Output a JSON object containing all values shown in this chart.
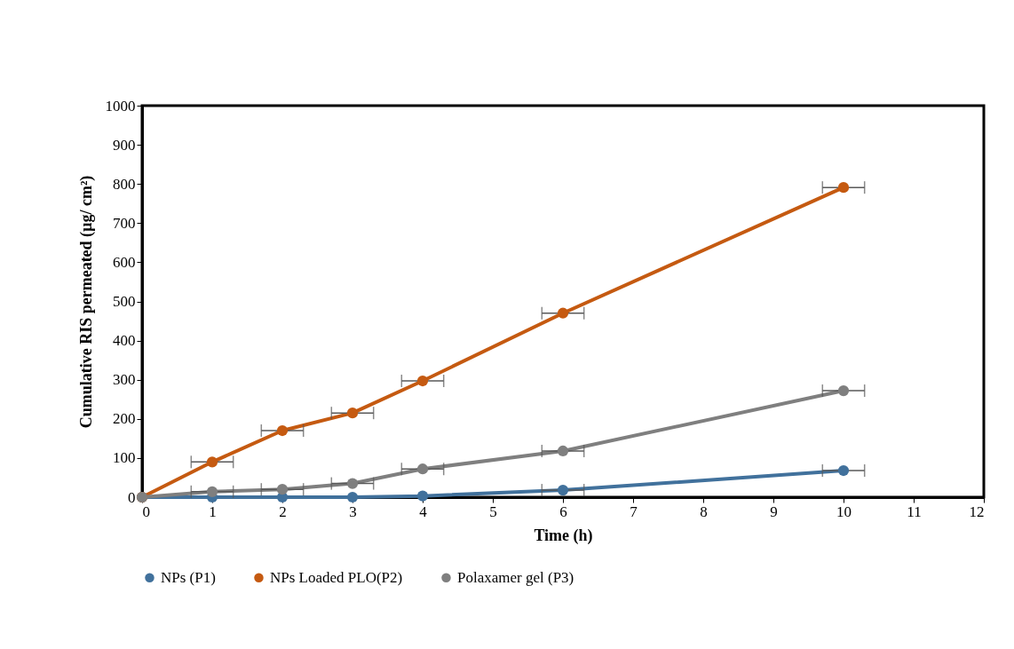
{
  "chart_data": {
    "type": "line",
    "xlabel": "Time (h)",
    "ylabel": "Cumulative RIS permeated (µg/ cm²)",
    "x": [
      0,
      1,
      2,
      3,
      4,
      6,
      10
    ],
    "series": [
      {
        "name": "NPs (P1)",
        "color": "#41719c",
        "values": [
          0,
          0,
          0,
          0,
          3,
          18,
          68
        ],
        "xerrors": [
          null,
          null,
          null,
          null,
          null,
          0.3,
          0.3
        ]
      },
      {
        "name": "NPs Loaded PLO(P2)",
        "color": "#c55a11",
        "values": [
          0,
          90,
          170,
          215,
          297,
          470,
          791
        ],
        "xerrors": [
          null,
          0.3,
          0.3,
          0.3,
          0.3,
          0.3,
          0.3
        ]
      },
      {
        "name": "Polaxamer gel (P3)",
        "color": "#7f7f7f",
        "values": [
          0,
          14,
          20,
          35,
          72,
          118,
          272
        ],
        "xerrors": [
          null,
          0.3,
          0.3,
          0.3,
          0.3,
          0.3,
          0.3
        ]
      }
    ],
    "xlim": [
      0,
      12
    ],
    "xticks": [
      0,
      1,
      2,
      3,
      4,
      5,
      6,
      7,
      8,
      9,
      10,
      11,
      12
    ],
    "ylim": [
      0,
      1000
    ],
    "yticks": [
      0,
      100,
      200,
      300,
      400,
      500,
      600,
      700,
      800,
      900,
      1000
    ],
    "grid": false,
    "legend": "bottom",
    "marker": "circle",
    "line_style": "solid"
  }
}
